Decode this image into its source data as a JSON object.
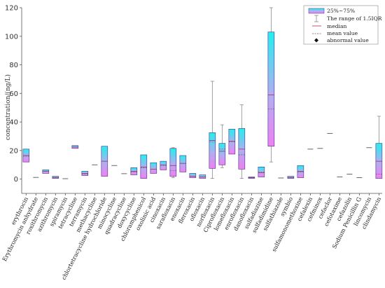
{
  "chart_data": {
    "type": "box",
    "ylabel": "concentration/(ng/L)",
    "ylim": [
      -10,
      120
    ],
    "yticks": [
      0,
      20,
      40,
      60,
      80,
      100,
      120
    ],
    "colors": {
      "box_top": "#22f0ec",
      "box_bottom": "#ee88ee",
      "box_border": "#4a2c8a",
      "whisker": "#8a8a8a",
      "median": "#bb2266",
      "mean": "#555555",
      "axis": "#555555"
    },
    "legend": {
      "position": "top-right",
      "entries": [
        "25%~75%",
        "The range of 1.5IQR",
        "median",
        "mean value",
        "abnormal value"
      ]
    },
    "categories": [
      "erythrocin",
      "Erythromycin anhydrate",
      "roxithromycin",
      "azithromycin",
      "spiramycin",
      "tetracycline",
      "terramycin",
      "methacycline",
      "chlortetracycline hydrochloride",
      "minocycline",
      "quadracycline",
      "doxycycline",
      "chloramphenicol",
      "oxolinic acid",
      "cinoxacin",
      "sarafloxacin",
      "enoxacin",
      "fleroxacin",
      "ofloxacin",
      "norfloxacin",
      "Ciprofloxacin",
      "lomefloxacin",
      "enrofloxacin",
      "danofloxacin",
      "sulfadiazine",
      "sulfadimidine",
      "sulfathiazole",
      "symbio",
      "sulfamonomethoxine",
      "cefalexin",
      "cefminox",
      "cefaclor",
      "cefotaxime",
      "cefazolin",
      "Sodium Penicillin G",
      "lincomycin",
      "clindamycin"
    ],
    "boxes": [
      {
        "q1": 12,
        "q3": 21,
        "median": 16.5,
        "mean": 16,
        "wlo": 12,
        "whi": 21
      },
      {
        "single": 1.2
      },
      {
        "q1": 4,
        "q3": 6.5,
        "median": 5.5,
        "mean": 5.5,
        "wlo": 4,
        "whi": 6.5
      },
      {
        "q1": 0.5,
        "q3": 2,
        "median": 1,
        "mean": 1,
        "wlo": 0.5,
        "whi": 2
      },
      {
        "single": 0.3
      },
      {
        "q1": 21.5,
        "q3": 23.5,
        "median": 22.5,
        "mean": 22.5,
        "wlo": 21.5,
        "whi": 23.5
      },
      {
        "q1": 2.5,
        "q3": 5.5,
        "median": 4,
        "mean": 3.5,
        "wlo": 2.5,
        "whi": 5.5
      },
      {
        "single": 10
      },
      {
        "q1": 2,
        "q3": 23,
        "median": 12.5,
        "mean": 12.5,
        "wlo": 2,
        "whi": 23
      },
      {
        "single": 9.5
      },
      {
        "single": 3.8
      },
      {
        "q1": 3,
        "q3": 8,
        "median": 5.5,
        "mean": 5,
        "wlo": 3,
        "whi": 8
      },
      {
        "q1": 0.5,
        "q3": 17,
        "median": 8.5,
        "mean": 8,
        "wlo": 0.5,
        "whi": 17
      },
      {
        "q1": 4,
        "q3": 11.5,
        "median": 7,
        "mean": 7,
        "wlo": 4,
        "whi": 11.5
      },
      {
        "q1": 6.5,
        "q3": 12.5,
        "median": 10,
        "mean": 9.5,
        "wlo": 6.5,
        "whi": 12.5
      },
      {
        "q1": 2,
        "q3": 21.5,
        "median": 9.5,
        "mean": 6,
        "wlo": 1,
        "whi": 22
      },
      {
        "q1": 5,
        "q3": 16.5,
        "median": 11,
        "mean": 11,
        "wlo": 5,
        "whi": 16.5
      },
      {
        "q1": 1,
        "q3": 4,
        "median": 2,
        "mean": 2,
        "wlo": 1,
        "whi": 4
      },
      {
        "q1": 0.5,
        "q3": 3,
        "median": 1.5,
        "mean": 1.5,
        "wlo": 0.5,
        "whi": 3
      },
      {
        "q1": 7.5,
        "q3": 32.5,
        "median": 27,
        "mean": 26,
        "wlo": 0.5,
        "whi": 68.5
      },
      {
        "q1": 10,
        "q3": 25,
        "median": 19.5,
        "mean": 21,
        "wlo": 8,
        "whi": 38
      },
      {
        "q1": 17.5,
        "q3": 35,
        "median": 26.5,
        "mean": 26,
        "wlo": 17.5,
        "whi": 35
      },
      {
        "q1": 7,
        "q3": 35.5,
        "median": 21,
        "mean": 17,
        "wlo": 0.5,
        "whi": 52
      },
      {
        "q1": 0.5,
        "q3": 1.5,
        "median": 1,
        "mean": 1,
        "wlo": 0.5,
        "whi": 1.5
      },
      {
        "q1": 1.5,
        "q3": 8.5,
        "median": 4.5,
        "mean": 5,
        "wlo": 1.5,
        "whi": 8.5
      },
      {
        "q1": 23,
        "q3": 103,
        "median": 59,
        "mean": 49,
        "wlo": 12,
        "whi": 120
      },
      {
        "single": 0.8
      },
      {
        "q1": 0.5,
        "q3": 2,
        "median": 1,
        "mean": 1,
        "wlo": 0.5,
        "whi": 2
      },
      {
        "q1": 1,
        "q3": 9.5,
        "median": 5.5,
        "mean": 5,
        "wlo": 1,
        "whi": 9.5
      },
      {
        "single": 21
      },
      {
        "single": 21.5
      },
      {
        "single": 32
      },
      {
        "single": 1.5
      },
      {
        "single": 3.5
      },
      {
        "single": 1
      },
      {
        "single": 22
      },
      {
        "q1": 0.5,
        "q3": 25,
        "median": 12.5,
        "mean": 3.5,
        "wlo": 0.5,
        "whi": 44
      }
    ]
  }
}
